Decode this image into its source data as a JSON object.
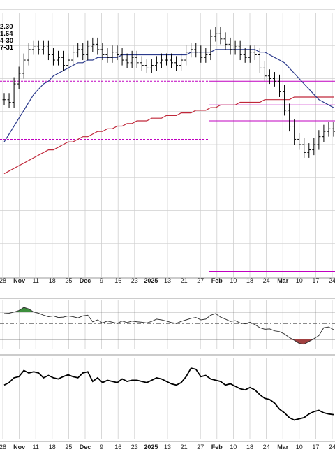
{
  "legend": [
    "2.30",
    "1.64",
    "4-30",
    "7-31"
  ],
  "x_axis_labels": [
    {
      "text": "28",
      "bold": false
    },
    {
      "text": "Nov",
      "bold": true
    },
    {
      "text": "11",
      "bold": false
    },
    {
      "text": "18",
      "bold": false
    },
    {
      "text": "25",
      "bold": false
    },
    {
      "text": "Dec",
      "bold": true
    },
    {
      "text": "9",
      "bold": false
    },
    {
      "text": "16",
      "bold": false
    },
    {
      "text": "23",
      "bold": false
    },
    {
      "text": "2025",
      "bold": true
    },
    {
      "text": "13",
      "bold": false
    },
    {
      "text": "21",
      "bold": false
    },
    {
      "text": "27",
      "bold": false
    },
    {
      "text": "Feb",
      "bold": true
    },
    {
      "text": "10",
      "bold": false
    },
    {
      "text": "18",
      "bold": false
    },
    {
      "text": "24",
      "bold": false
    },
    {
      "text": "Mar",
      "bold": true
    },
    {
      "text": "10",
      "bold": false
    },
    {
      "text": "17",
      "bold": false
    },
    {
      "text": "24",
      "bold": false
    }
  ],
  "colors": {
    "grid": "#cfcfcf",
    "bars": "#000000",
    "ma_short": "#2b3a8c",
    "ma_long": "#c0283a",
    "levels": "#c000c0",
    "osc_line": "#333333",
    "osc_fill_high": "#3d8f3d",
    "osc_fill_low": "#a04040"
  },
  "chart_data": [
    {
      "type": "ohlc",
      "panel": "price",
      "y_scale": "relative (price axis not shown)",
      "close": [
        0.67,
        0.66,
        0.73,
        0.77,
        0.82,
        0.86,
        0.87,
        0.86,
        0.87,
        0.84,
        0.82,
        0.83,
        0.8,
        0.82,
        0.85,
        0.86,
        0.84,
        0.87,
        0.88,
        0.86,
        0.84,
        0.83,
        0.85,
        0.84,
        0.82,
        0.81,
        0.83,
        0.81,
        0.8,
        0.79,
        0.8,
        0.81,
        0.82,
        0.82,
        0.81,
        0.8,
        0.82,
        0.85,
        0.86,
        0.85,
        0.83,
        0.84,
        0.91,
        0.92,
        0.9,
        0.88,
        0.86,
        0.87,
        0.84,
        0.83,
        0.85,
        0.84,
        0.79,
        0.76,
        0.75,
        0.74,
        0.7,
        0.63,
        0.57,
        0.52,
        0.5,
        0.47,
        0.48,
        0.5,
        0.53,
        0.55,
        0.56,
        0.55
      ],
      "ma_short": [
        0.51,
        0.54,
        0.57,
        0.6,
        0.63,
        0.66,
        0.69,
        0.71,
        0.73,
        0.74,
        0.76,
        0.77,
        0.78,
        0.79,
        0.8,
        0.81,
        0.81,
        0.82,
        0.82,
        0.83,
        0.83,
        0.83,
        0.83,
        0.83,
        0.84,
        0.84,
        0.84,
        0.84,
        0.84,
        0.84,
        0.84,
        0.84,
        0.84,
        0.84,
        0.84,
        0.84,
        0.84,
        0.84,
        0.85,
        0.85,
        0.85,
        0.85,
        0.85,
        0.86,
        0.86,
        0.86,
        0.86,
        0.86,
        0.86,
        0.86,
        0.86,
        0.86,
        0.85,
        0.85,
        0.84,
        0.83,
        0.82,
        0.81,
        0.79,
        0.77,
        0.75,
        0.73,
        0.71,
        0.69,
        0.67,
        0.66,
        0.65,
        0.64
      ],
      "ma_long": [
        0.39,
        0.4,
        0.41,
        0.42,
        0.43,
        0.44,
        0.45,
        0.46,
        0.47,
        0.48,
        0.48,
        0.49,
        0.5,
        0.51,
        0.51,
        0.52,
        0.53,
        0.53,
        0.54,
        0.55,
        0.55,
        0.56,
        0.56,
        0.57,
        0.57,
        0.58,
        0.58,
        0.59,
        0.59,
        0.59,
        0.6,
        0.6,
        0.6,
        0.61,
        0.61,
        0.61,
        0.62,
        0.62,
        0.62,
        0.63,
        0.63,
        0.63,
        0.64,
        0.64,
        0.65,
        0.65,
        0.65,
        0.65,
        0.66,
        0.66,
        0.66,
        0.66,
        0.66,
        0.67,
        0.67,
        0.67,
        0.67,
        0.67,
        0.67,
        0.68,
        0.68,
        0.68,
        0.68,
        0.68,
        0.68,
        0.68,
        0.68,
        0.68
      ],
      "levels_dashed": [
        0.74,
        0.52
      ],
      "levels_solid": [
        0.93,
        0.74,
        0.65,
        0.59,
        0.02
      ]
    },
    {
      "type": "line",
      "panel": "oscillator_1",
      "values": [
        0.66,
        0.67,
        0.7,
        0.74,
        0.82,
        0.78,
        0.7,
        0.67,
        0.62,
        0.58,
        0.6,
        0.56,
        0.57,
        0.6,
        0.58,
        0.55,
        0.6,
        0.62,
        0.45,
        0.5,
        0.42,
        0.47,
        0.44,
        0.41,
        0.47,
        0.43,
        0.47,
        0.45,
        0.44,
        0.42,
        0.46,
        0.52,
        0.5,
        0.47,
        0.43,
        0.41,
        0.46,
        0.5,
        0.54,
        0.56,
        0.5,
        0.52,
        0.62,
        0.66,
        0.57,
        0.52,
        0.46,
        0.48,
        0.42,
        0.4,
        0.44,
        0.38,
        0.3,
        0.26,
        0.27,
        0.22,
        0.2,
        0.14,
        0.05,
        -0.02,
        -0.1,
        -0.12,
        -0.05,
        0.02,
        0.1,
        0.3,
        0.32,
        0.25
      ],
      "ylim": [
        -0.25,
        1.0
      ],
      "levels": [
        0.7,
        0.4,
        0.0
      ]
    },
    {
      "type": "line",
      "panel": "oscillator_2",
      "values": [
        0.58,
        0.62,
        0.7,
        0.72,
        0.82,
        0.78,
        0.8,
        0.78,
        0.7,
        0.74,
        0.7,
        0.68,
        0.72,
        0.75,
        0.72,
        0.7,
        0.78,
        0.8,
        0.64,
        0.7,
        0.62,
        0.66,
        0.64,
        0.62,
        0.68,
        0.64,
        0.66,
        0.66,
        0.64,
        0.62,
        0.66,
        0.7,
        0.68,
        0.64,
        0.6,
        0.58,
        0.62,
        0.72,
        0.86,
        0.84,
        0.72,
        0.74,
        0.68,
        0.66,
        0.64,
        0.58,
        0.6,
        0.56,
        0.52,
        0.5,
        0.54,
        0.5,
        0.42,
        0.36,
        0.34,
        0.28,
        0.18,
        0.12,
        0.04,
        0.0,
        0.02,
        0.04,
        0.1,
        0.14,
        0.16,
        0.12,
        0.1,
        0.09
      ],
      "ylim": [
        -0.1,
        1.0
      ],
      "levels": [
        0.0
      ]
    }
  ]
}
